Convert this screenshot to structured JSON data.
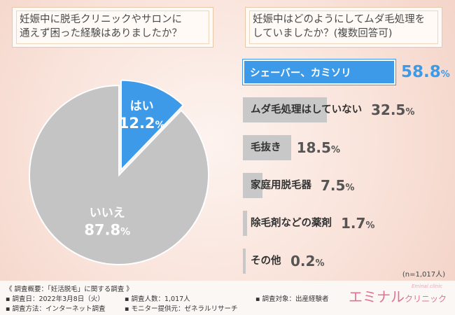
{
  "pie": {
    "title": [
      "妊娠中に脱毛クリニックやサロンに",
      "通えず困った経験はありましたか？"
    ]
  },
  "bars": {
    "title": [
      "妊娠中はどのようにしてムダ毛処理を",
      "していましたか？(複数回答可)"
    ]
  },
  "chart_data": [
    {
      "type": "pie",
      "categories": [
        "はい",
        "いいえ"
      ],
      "values": [
        12.2,
        87.8
      ],
      "title": "妊娠中に脱毛クリニックやサロンに通えず困った経験はありましたか？",
      "colors": [
        "#3d9ae8",
        "#c4c4c4"
      ],
      "labels": [
        {
          "name": "はい",
          "value": "12.2",
          "unit": "%"
        },
        {
          "name": "いいえ",
          "value": "87.8",
          "unit": "%"
        }
      ]
    },
    {
      "type": "bar",
      "title": "妊娠中はどのようにしてムダ毛処理をしていましたか？(複数回答可)",
      "categories": [
        "シェーバー、カミソリ",
        "ムダ毛処理はしていない",
        "毛抜き",
        "家庭用脱毛器",
        "除毛剤などの薬剤",
        "その他"
      ],
      "values": [
        58.8,
        32.5,
        18.5,
        7.5,
        1.7,
        0.2
      ],
      "unit": "%",
      "highlight_color": "#3d9ae8",
      "bar_color": "#c8c8c8",
      "n_note": "(n=1,017人)"
    }
  ],
  "footer": {
    "summary": "《 調査概要：「妊活脱毛」に関する調査 》",
    "date": "▪ 調査日：2022年3月8日（火）",
    "method": "▪ 調査方法：インターネット調査",
    "respondents": "▪ 調査人数：1,017人",
    "provider": "▪ モニター提供元：ゼネラルリサーチ",
    "target": "▪ 調査対象：出産経験者"
  },
  "logo": {
    "main": "エミナル",
    "sub": "クリニック",
    "tagline": "Eminal clinic"
  }
}
